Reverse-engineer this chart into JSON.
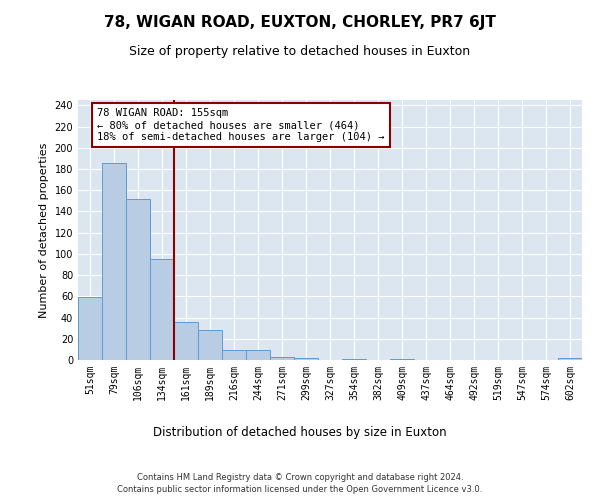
{
  "title": "78, WIGAN ROAD, EUXTON, CHORLEY, PR7 6JT",
  "subtitle": "Size of property relative to detached houses in Euxton",
  "xlabel": "Distribution of detached houses by size in Euxton",
  "ylabel": "Number of detached properties",
  "footer": "Contains HM Land Registry data © Crown copyright and database right 2024.\nContains public sector information licensed under the Open Government Licence v3.0.",
  "bin_labels": [
    "51sqm",
    "79sqm",
    "106sqm",
    "134sqm",
    "161sqm",
    "189sqm",
    "216sqm",
    "244sqm",
    "271sqm",
    "299sqm",
    "327sqm",
    "354sqm",
    "382sqm",
    "409sqm",
    "437sqm",
    "464sqm",
    "492sqm",
    "519sqm",
    "547sqm",
    "574sqm",
    "602sqm"
  ],
  "bar_values": [
    59,
    186,
    152,
    95,
    36,
    28,
    9,
    9,
    3,
    2,
    0,
    1,
    0,
    1,
    0,
    0,
    0,
    0,
    0,
    0,
    2
  ],
  "bar_color": "#b8cce4",
  "bar_edge_color": "#5b9bd5",
  "vline_color": "#8b0000",
  "annotation_text": "78 WIGAN ROAD: 155sqm\n← 80% of detached houses are smaller (464)\n18% of semi-detached houses are larger (104) →",
  "annotation_box_color": "#ffffff",
  "annotation_box_edge": "#8b0000",
  "ylim": [
    0,
    245
  ],
  "yticks": [
    0,
    20,
    40,
    60,
    80,
    100,
    120,
    140,
    160,
    180,
    200,
    220,
    240
  ],
  "plot_bg_color": "#dce6f1",
  "grid_color": "#ffffff",
  "title_fontsize": 11,
  "subtitle_fontsize": 9,
  "ylabel_fontsize": 8,
  "xlabel_fontsize": 8.5,
  "tick_fontsize": 7,
  "annotation_fontsize": 7.5,
  "footer_fontsize": 6
}
